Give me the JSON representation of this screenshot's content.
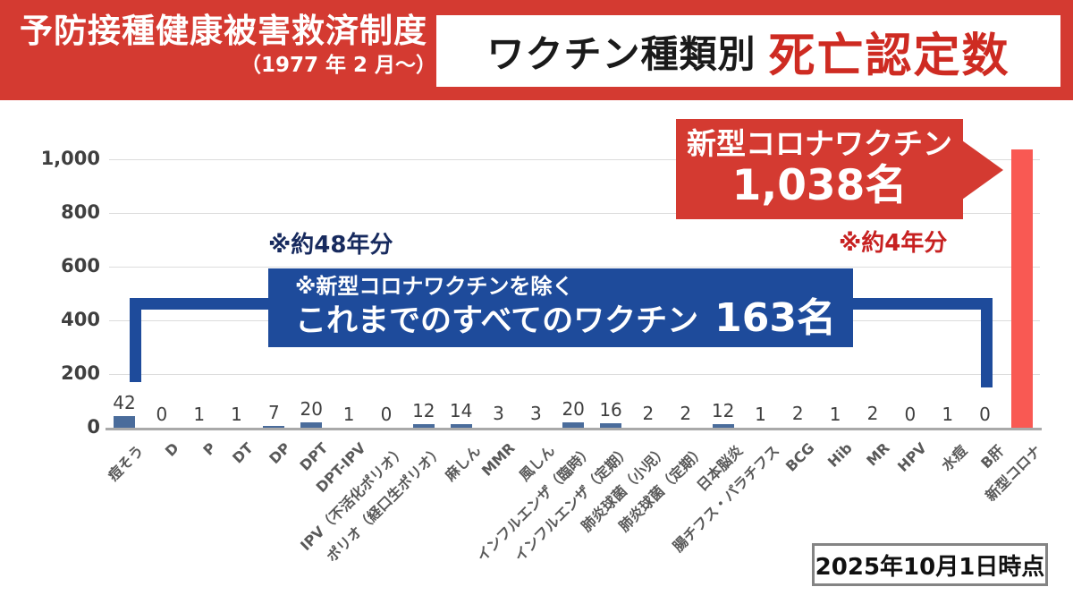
{
  "header": {
    "program_title": "予防接種健康被害救済制度",
    "program_period": "（1977 年 2 月～）",
    "chart_title_prefix": "ワクチン種類別",
    "chart_title_emphasis": "死亡認定数"
  },
  "annotations": {
    "others_period_note": "※約48年分",
    "covid_period_note": "※約4年分",
    "others_box_line1": "※新型コロナワクチンを除く",
    "others_box_line2": "これまでのすべてのワクチン",
    "others_box_value": "163名",
    "covid_callout_title": "新型コロナワクチン",
    "covid_callout_value": "1,038名",
    "as_of_date": "2025年10月1日時点"
  },
  "colors": {
    "header_red": "#d43a31",
    "title_emphasis_red": "#ce2b22",
    "bar_blue": "#4a6c9b",
    "highlight_bar_red": "#f95953",
    "bracket_blue": "#1e4b9b",
    "note_navy": "#172a5e",
    "note_red": "#c72121",
    "gridline_gray": "#dcdcdc",
    "axis_gray": "#a9a9a9"
  },
  "chart_data": {
    "type": "bar",
    "title": "ワクチン種類別 死亡認定数（予防接種健康被害救済制度 1977年2月～）",
    "xlabel": "",
    "ylabel": "",
    "ylim": [
      0,
      1000
    ],
    "grid": true,
    "legend_position": "none",
    "categories": [
      "痘そう",
      "D",
      "P",
      "DT",
      "DP",
      "DPT",
      "DPT-IPV",
      "IPV（不活化ポリオ）",
      "ポリオ（経口生ポリオ）",
      "麻しん",
      "MMR",
      "風しん",
      "インフルエンザ（臨時）",
      "インフルエンザ（定期）",
      "肺炎球菌（小児）",
      "肺炎球菌（定期）",
      "日本脳炎",
      "腸チフス・パラチフス",
      "BCG",
      "Hib",
      "MR",
      "HPV",
      "水痘",
      "B肝",
      "新型コロナ"
    ],
    "values": [
      42,
      0,
      1,
      1,
      7,
      20,
      1,
      0,
      12,
      14,
      3,
      3,
      20,
      16,
      2,
      2,
      12,
      1,
      2,
      1,
      2,
      0,
      1,
      0,
      1038
    ],
    "value_labels": [
      "42",
      "0",
      "1",
      "1",
      "7",
      "20",
      "1",
      "0",
      "12",
      "14",
      "3",
      "3",
      "20",
      "16",
      "2",
      "2",
      "12",
      "1",
      "2",
      "1",
      "2",
      "0",
      "1",
      "0",
      null
    ],
    "highlight_index": 24,
    "yticks": [
      {
        "value": 0,
        "label": "0"
      },
      {
        "value": 200,
        "label": "200"
      },
      {
        "value": 400,
        "label": "400"
      },
      {
        "value": 600,
        "label": "600"
      },
      {
        "value": 800,
        "label": "800"
      },
      {
        "value": 1000,
        "label": "1,000"
      }
    ],
    "totals": {
      "all_vaccines_excluding_covid": 163,
      "covid": 1038
    }
  }
}
